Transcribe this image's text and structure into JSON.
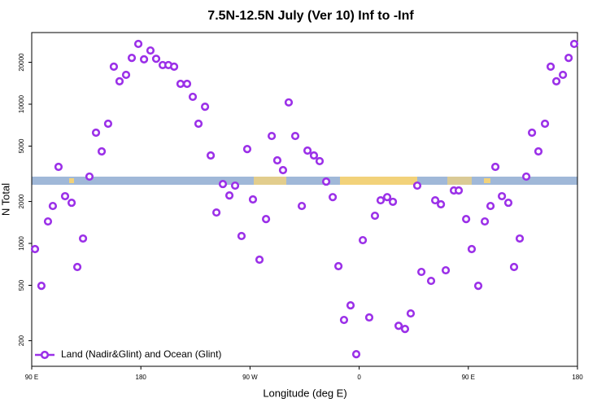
{
  "chart_data": {
    "type": "scatter",
    "title": "7.5N-12.5N July (Ver 10)   Inf to -Inf",
    "x_label": "Longitude (deg E)",
    "y_label": "N Total",
    "y_log": true,
    "legend_position": "lower left",
    "xlim": [
      90,
      540
    ],
    "xticks": [
      {
        "value": 90,
        "label": "90 E"
      },
      {
        "value": 180,
        "label": "180"
      },
      {
        "value": 270,
        "label": "90 W"
      },
      {
        "value": 360,
        "label": "0"
      },
      {
        "value": 450,
        "label": "90 E"
      },
      {
        "value": 540,
        "label": "180"
      }
    ],
    "ylim": [
      131,
      32700
    ],
    "yticks": [
      200,
      500,
      1000,
      2000,
      5000,
      10000,
      20000
    ],
    "series": [
      {
        "name": "Land (Nadir&Glint) and Ocean (Glint)",
        "color": "#9b30e8",
        "x": [
          92.7,
          98,
          103.4,
          107.4,
          112.1,
          117.5,
          122.9,
          127.6,
          132.3,
          137.6,
          143,
          147.7,
          153,
          157.7,
          162.4,
          167.8,
          172.5,
          177.9,
          182.6,
          187.9,
          192.6,
          198,
          202.7,
          207.4,
          212.7,
          218.1,
          222.8,
          227.5,
          232.9,
          237.6,
          242.3,
          247.6,
          253,
          257.7,
          263,
          267.7,
          272.4,
          277.8,
          283.2,
          287.9,
          292.5,
          297.2,
          301.9,
          307.3,
          312.7,
          317.4,
          322.7,
          327.4,
          332.8,
          338.2,
          342.9,
          347.5,
          352.9,
          357.6,
          363,
          368.3,
          373,
          377.7,
          383.1,
          387.8,
          392.5,
          397.8,
          402.5,
          407.9,
          411.3,
          419.3,
          422.7,
          427.4,
          431.4,
          438.1,
          442.1,
          448.2,
          452.8,
          458.2,
          463.6,
          468.3,
          472.3,
          477.7,
          483,
          487.7,
          492.4,
          497.8,
          502.5,
          507.8,
          513.2,
          517.9,
          522.6,
          528,
          532.7,
          537.3
        ],
        "values": [
          910,
          496,
          1438,
          1857,
          3548,
          2183,
          1959,
          677,
          1084,
          3020,
          6240,
          4580,
          7240,
          18600,
          14600,
          16250,
          21500,
          27100,
          21000,
          24300,
          21200,
          19100,
          19100,
          18600,
          14000,
          14000,
          11300,
          7240,
          9590,
          4280,
          1667,
          2670,
          2210,
          2600,
          1130,
          4760,
          2070,
          764,
          1496,
          5910,
          3950,
          3360,
          10300,
          5910,
          1857,
          4640,
          4280,
          3900,
          2780,
          2150,
          686,
          282,
          359,
          160,
          1055,
          294,
          1580,
          2040,
          2150,
          1990,
          256,
          243,
          314,
          2600,
          624,
          538,
          2040,
          1910,
          641,
          2400,
          2400,
          1496,
          910,
          496,
          1438,
          1857,
          3548,
          2183,
          1959,
          677,
          1084,
          3020,
          6240,
          4580,
          7240,
          18600,
          14600,
          16250,
          21500,
          27100
        ]
      }
    ]
  }
}
